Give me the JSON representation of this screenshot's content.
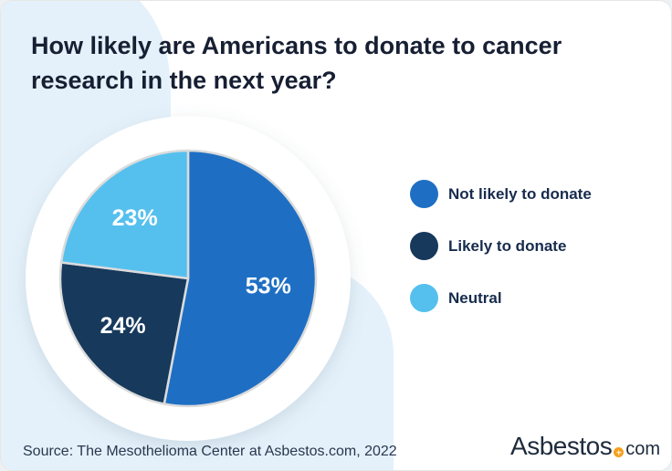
{
  "header": {
    "title": "How likely are Americans to donate to cancer research in the next year?"
  },
  "chart_data": {
    "type": "pie",
    "title": "How likely are Americans to donate to cancer research in the next year?",
    "slices": [
      {
        "label": "Not likely to donate",
        "value": 53,
        "color": "#1E6FC4"
      },
      {
        "label": "Likely to donate",
        "value": 24,
        "color": "#16395C"
      },
      {
        "label": "Neutral",
        "value": 23,
        "color": "#55C0EE"
      }
    ],
    "start_angle_deg": 0,
    "direction": "clockwise",
    "value_suffix": "%",
    "slice_label_color": "#FFFFFF",
    "slice_divider_color": "#DBDBDB",
    "legend_position": "right"
  },
  "footer": {
    "source_text": "Source: The Mesothelioma Center at Asbestos.com, 2022",
    "logo": {
      "brand": "Asbestos",
      "tld": "com",
      "dot_color": "#F6A01E"
    }
  },
  "colors": {
    "card_background": "#FFFFFF",
    "background_blob": "#E4F1FA",
    "pie_backdrop": "#FFFFFF",
    "text_primary": "#171F33"
  }
}
